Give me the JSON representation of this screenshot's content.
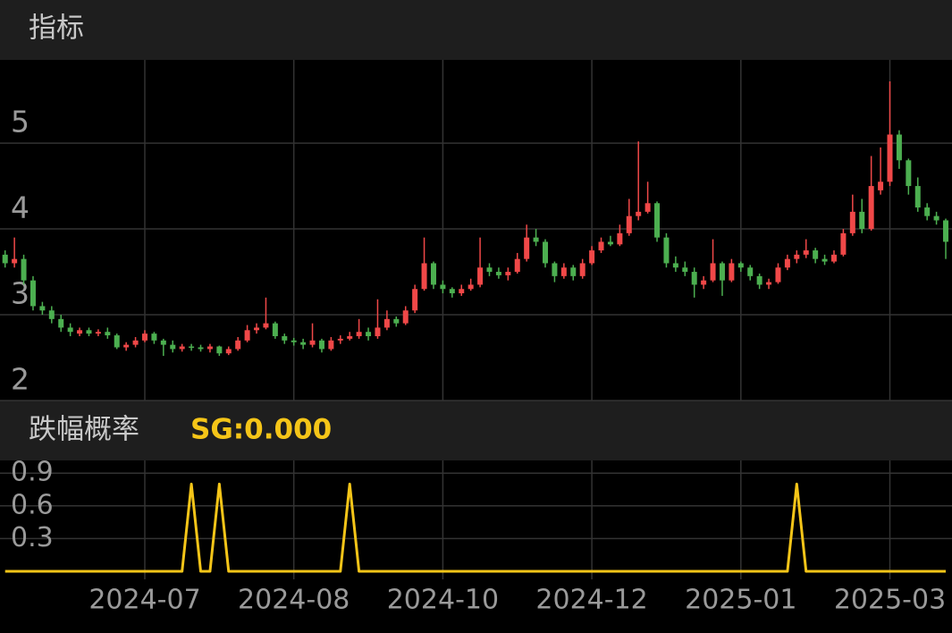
{
  "header": {
    "title": "指标"
  },
  "chart_data": [
    {
      "type": "candlestick",
      "ylim": [
        2,
        5.97
      ],
      "yticks": [
        2,
        3,
        4,
        5
      ],
      "grid": true,
      "up_color": "#f04848",
      "down_color": "#4caf50",
      "candles": [
        [
          3.7,
          3.75,
          3.55,
          3.6
        ],
        [
          3.6,
          3.9,
          3.55,
          3.65
        ],
        [
          3.65,
          3.7,
          3.35,
          3.4
        ],
        [
          3.4,
          3.45,
          3.05,
          3.1
        ],
        [
          3.1,
          3.15,
          3.0,
          3.05
        ],
        [
          3.05,
          3.1,
          2.9,
          2.95
        ],
        [
          2.95,
          3.0,
          2.8,
          2.85
        ],
        [
          2.85,
          2.9,
          2.75,
          2.8
        ],
        [
          2.78,
          2.85,
          2.75,
          2.82
        ],
        [
          2.82,
          2.85,
          2.75,
          2.78
        ],
        [
          2.78,
          2.83,
          2.75,
          2.8
        ],
        [
          2.8,
          2.85,
          2.72,
          2.76
        ],
        [
          2.76,
          2.78,
          2.6,
          2.62
        ],
        [
          2.62,
          2.68,
          2.58,
          2.65
        ],
        [
          2.65,
          2.74,
          2.62,
          2.7
        ],
        [
          2.7,
          2.82,
          2.68,
          2.78
        ],
        [
          2.78,
          2.8,
          2.66,
          2.7
        ],
        [
          2.7,
          2.72,
          2.52,
          2.65
        ],
        [
          2.65,
          2.7,
          2.56,
          2.6
        ],
        [
          2.6,
          2.66,
          2.57,
          2.63
        ],
        [
          2.63,
          2.66,
          2.58,
          2.62
        ],
        [
          2.62,
          2.65,
          2.57,
          2.6
        ],
        [
          2.6,
          2.66,
          2.56,
          2.63
        ],
        [
          2.63,
          2.64,
          2.52,
          2.55
        ],
        [
          2.55,
          2.63,
          2.53,
          2.6
        ],
        [
          2.6,
          2.74,
          2.58,
          2.7
        ],
        [
          2.7,
          2.88,
          2.68,
          2.82
        ],
        [
          2.82,
          2.9,
          2.78,
          2.85
        ],
        [
          2.85,
          3.2,
          2.83,
          2.9
        ],
        [
          2.9,
          2.92,
          2.72,
          2.75
        ],
        [
          2.75,
          2.78,
          2.66,
          2.7
        ],
        [
          2.7,
          2.73,
          2.64,
          2.68
        ],
        [
          2.68,
          2.72,
          2.6,
          2.65
        ],
        [
          2.65,
          2.9,
          2.62,
          2.7
        ],
        [
          2.7,
          2.72,
          2.56,
          2.6
        ],
        [
          2.6,
          2.74,
          2.58,
          2.7
        ],
        [
          2.7,
          2.76,
          2.66,
          2.72
        ],
        [
          2.72,
          2.8,
          2.7,
          2.75
        ],
        [
          2.75,
          2.95,
          2.72,
          2.8
        ],
        [
          2.8,
          2.85,
          2.7,
          2.75
        ],
        [
          2.75,
          3.18,
          2.72,
          2.85
        ],
        [
          2.85,
          3.05,
          2.82,
          2.95
        ],
        [
          2.95,
          2.98,
          2.86,
          2.9
        ],
        [
          2.9,
          3.1,
          2.88,
          3.05
        ],
        [
          3.05,
          3.35,
          3.02,
          3.3
        ],
        [
          3.3,
          3.9,
          3.28,
          3.6
        ],
        [
          3.6,
          3.62,
          3.3,
          3.35
        ],
        [
          3.35,
          3.4,
          3.25,
          3.3
        ],
        [
          3.3,
          3.32,
          3.2,
          3.25
        ],
        [
          3.25,
          3.35,
          3.22,
          3.3
        ],
        [
          3.3,
          3.42,
          3.28,
          3.35
        ],
        [
          3.35,
          3.9,
          3.32,
          3.55
        ],
        [
          3.55,
          3.6,
          3.45,
          3.5
        ],
        [
          3.5,
          3.55,
          3.42,
          3.46
        ],
        [
          3.46,
          3.55,
          3.4,
          3.5
        ],
        [
          3.5,
          3.72,
          3.48,
          3.65
        ],
        [
          3.65,
          4.05,
          3.62,
          3.9
        ],
        [
          3.9,
          4.0,
          3.8,
          3.85
        ],
        [
          3.85,
          3.88,
          3.55,
          3.6
        ],
        [
          3.6,
          3.62,
          3.38,
          3.45
        ],
        [
          3.45,
          3.6,
          3.42,
          3.55
        ],
        [
          3.55,
          3.58,
          3.4,
          3.45
        ],
        [
          3.45,
          3.65,
          3.42,
          3.6
        ],
        [
          3.6,
          3.8,
          3.58,
          3.75
        ],
        [
          3.75,
          3.9,
          3.72,
          3.85
        ],
        [
          3.85,
          3.92,
          3.8,
          3.82
        ],
        [
          3.82,
          4.05,
          3.8,
          3.95
        ],
        [
          3.95,
          4.35,
          3.92,
          4.15
        ],
        [
          4.15,
          5.02,
          4.1,
          4.2
        ],
        [
          4.2,
          4.55,
          4.18,
          4.3
        ],
        [
          4.3,
          4.32,
          3.85,
          3.9
        ],
        [
          3.9,
          3.95,
          3.55,
          3.6
        ],
        [
          3.6,
          3.68,
          3.5,
          3.55
        ],
        [
          3.55,
          3.62,
          3.45,
          3.5
        ],
        [
          3.5,
          3.55,
          3.2,
          3.35
        ],
        [
          3.35,
          3.45,
          3.3,
          3.4
        ],
        [
          3.4,
          3.88,
          3.38,
          3.6
        ],
        [
          3.6,
          3.62,
          3.22,
          3.4
        ],
        [
          3.4,
          3.65,
          3.38,
          3.6
        ],
        [
          3.6,
          3.62,
          3.5,
          3.55
        ],
        [
          3.55,
          3.58,
          3.4,
          3.45
        ],
        [
          3.45,
          3.48,
          3.3,
          3.35
        ],
        [
          3.35,
          3.42,
          3.3,
          3.38
        ],
        [
          3.38,
          3.6,
          3.36,
          3.55
        ],
        [
          3.55,
          3.7,
          3.52,
          3.65
        ],
        [
          3.65,
          3.75,
          3.6,
          3.7
        ],
        [
          3.7,
          3.88,
          3.66,
          3.75
        ],
        [
          3.75,
          3.78,
          3.6,
          3.65
        ],
        [
          3.65,
          3.7,
          3.58,
          3.62
        ],
        [
          3.62,
          3.75,
          3.6,
          3.7
        ],
        [
          3.7,
          4.0,
          3.68,
          3.95
        ],
        [
          3.95,
          4.4,
          3.92,
          4.2
        ],
        [
          4.2,
          4.35,
          3.95,
          4.0
        ],
        [
          4.0,
          4.85,
          3.98,
          4.5
        ],
        [
          4.45,
          4.95,
          4.4,
          4.55
        ],
        [
          4.55,
          5.72,
          4.5,
          5.1
        ],
        [
          5.1,
          5.15,
          4.7,
          4.8
        ],
        [
          4.8,
          4.82,
          4.4,
          4.5
        ],
        [
          4.5,
          4.6,
          4.2,
          4.25
        ],
        [
          4.25,
          4.3,
          4.1,
          4.15
        ],
        [
          4.15,
          4.2,
          4.05,
          4.1
        ],
        [
          4.1,
          4.12,
          3.65,
          3.85
        ]
      ]
    },
    {
      "type": "line",
      "title": "跌幅概率",
      "indicator": "SG:0.000",
      "ylim": [
        0,
        1
      ],
      "yticks": [
        0.3,
        0.6,
        0.9
      ],
      "grid": true,
      "categories": [
        null,
        null,
        null,
        null,
        null,
        null,
        null,
        null,
        null,
        null,
        null,
        null,
        null,
        null,
        null,
        "2024-07",
        null,
        null,
        null,
        null,
        null,
        null,
        null,
        null,
        null,
        null,
        null,
        null,
        null,
        null,
        null,
        "2024-08",
        null,
        null,
        null,
        null,
        null,
        null,
        null,
        null,
        null,
        null,
        null,
        null,
        null,
        null,
        null,
        "2024-10",
        null,
        null,
        null,
        null,
        null,
        null,
        null,
        null,
        null,
        null,
        null,
        null,
        null,
        null,
        null,
        "2024-12",
        null,
        null,
        null,
        null,
        null,
        null,
        null,
        null,
        null,
        null,
        null,
        null,
        null,
        null,
        null,
        "2025-01",
        null,
        null,
        null,
        null,
        null,
        null,
        null,
        null,
        null,
        null,
        null,
        null,
        null,
        null,
        null,
        "2025-03",
        null,
        null,
        null,
        null,
        null,
        null
      ],
      "series": [
        {
          "color": "#f5c518",
          "values": [
            0,
            0,
            0,
            0,
            0,
            0,
            0,
            0,
            0,
            0,
            0,
            0,
            0,
            0,
            0,
            0,
            0,
            0,
            0,
            0,
            0.8,
            0,
            0,
            0.8,
            0,
            0,
            0,
            0,
            0,
            0,
            0,
            0,
            0,
            0,
            0,
            0,
            0,
            0.8,
            0,
            0,
            0,
            0,
            0,
            0,
            0,
            0,
            0,
            0,
            0,
            0,
            0,
            0,
            0,
            0,
            0,
            0,
            0,
            0,
            0,
            0,
            0,
            0,
            0,
            0,
            0,
            0,
            0,
            0,
            0,
            0,
            0,
            0,
            0,
            0,
            0,
            0,
            0,
            0,
            0,
            0,
            0,
            0,
            0,
            0,
            0,
            0.8,
            0,
            0,
            0,
            0,
            0,
            0,
            0,
            0,
            0,
            0,
            0,
            0,
            0,
            0,
            0,
            0
          ]
        }
      ]
    }
  ]
}
